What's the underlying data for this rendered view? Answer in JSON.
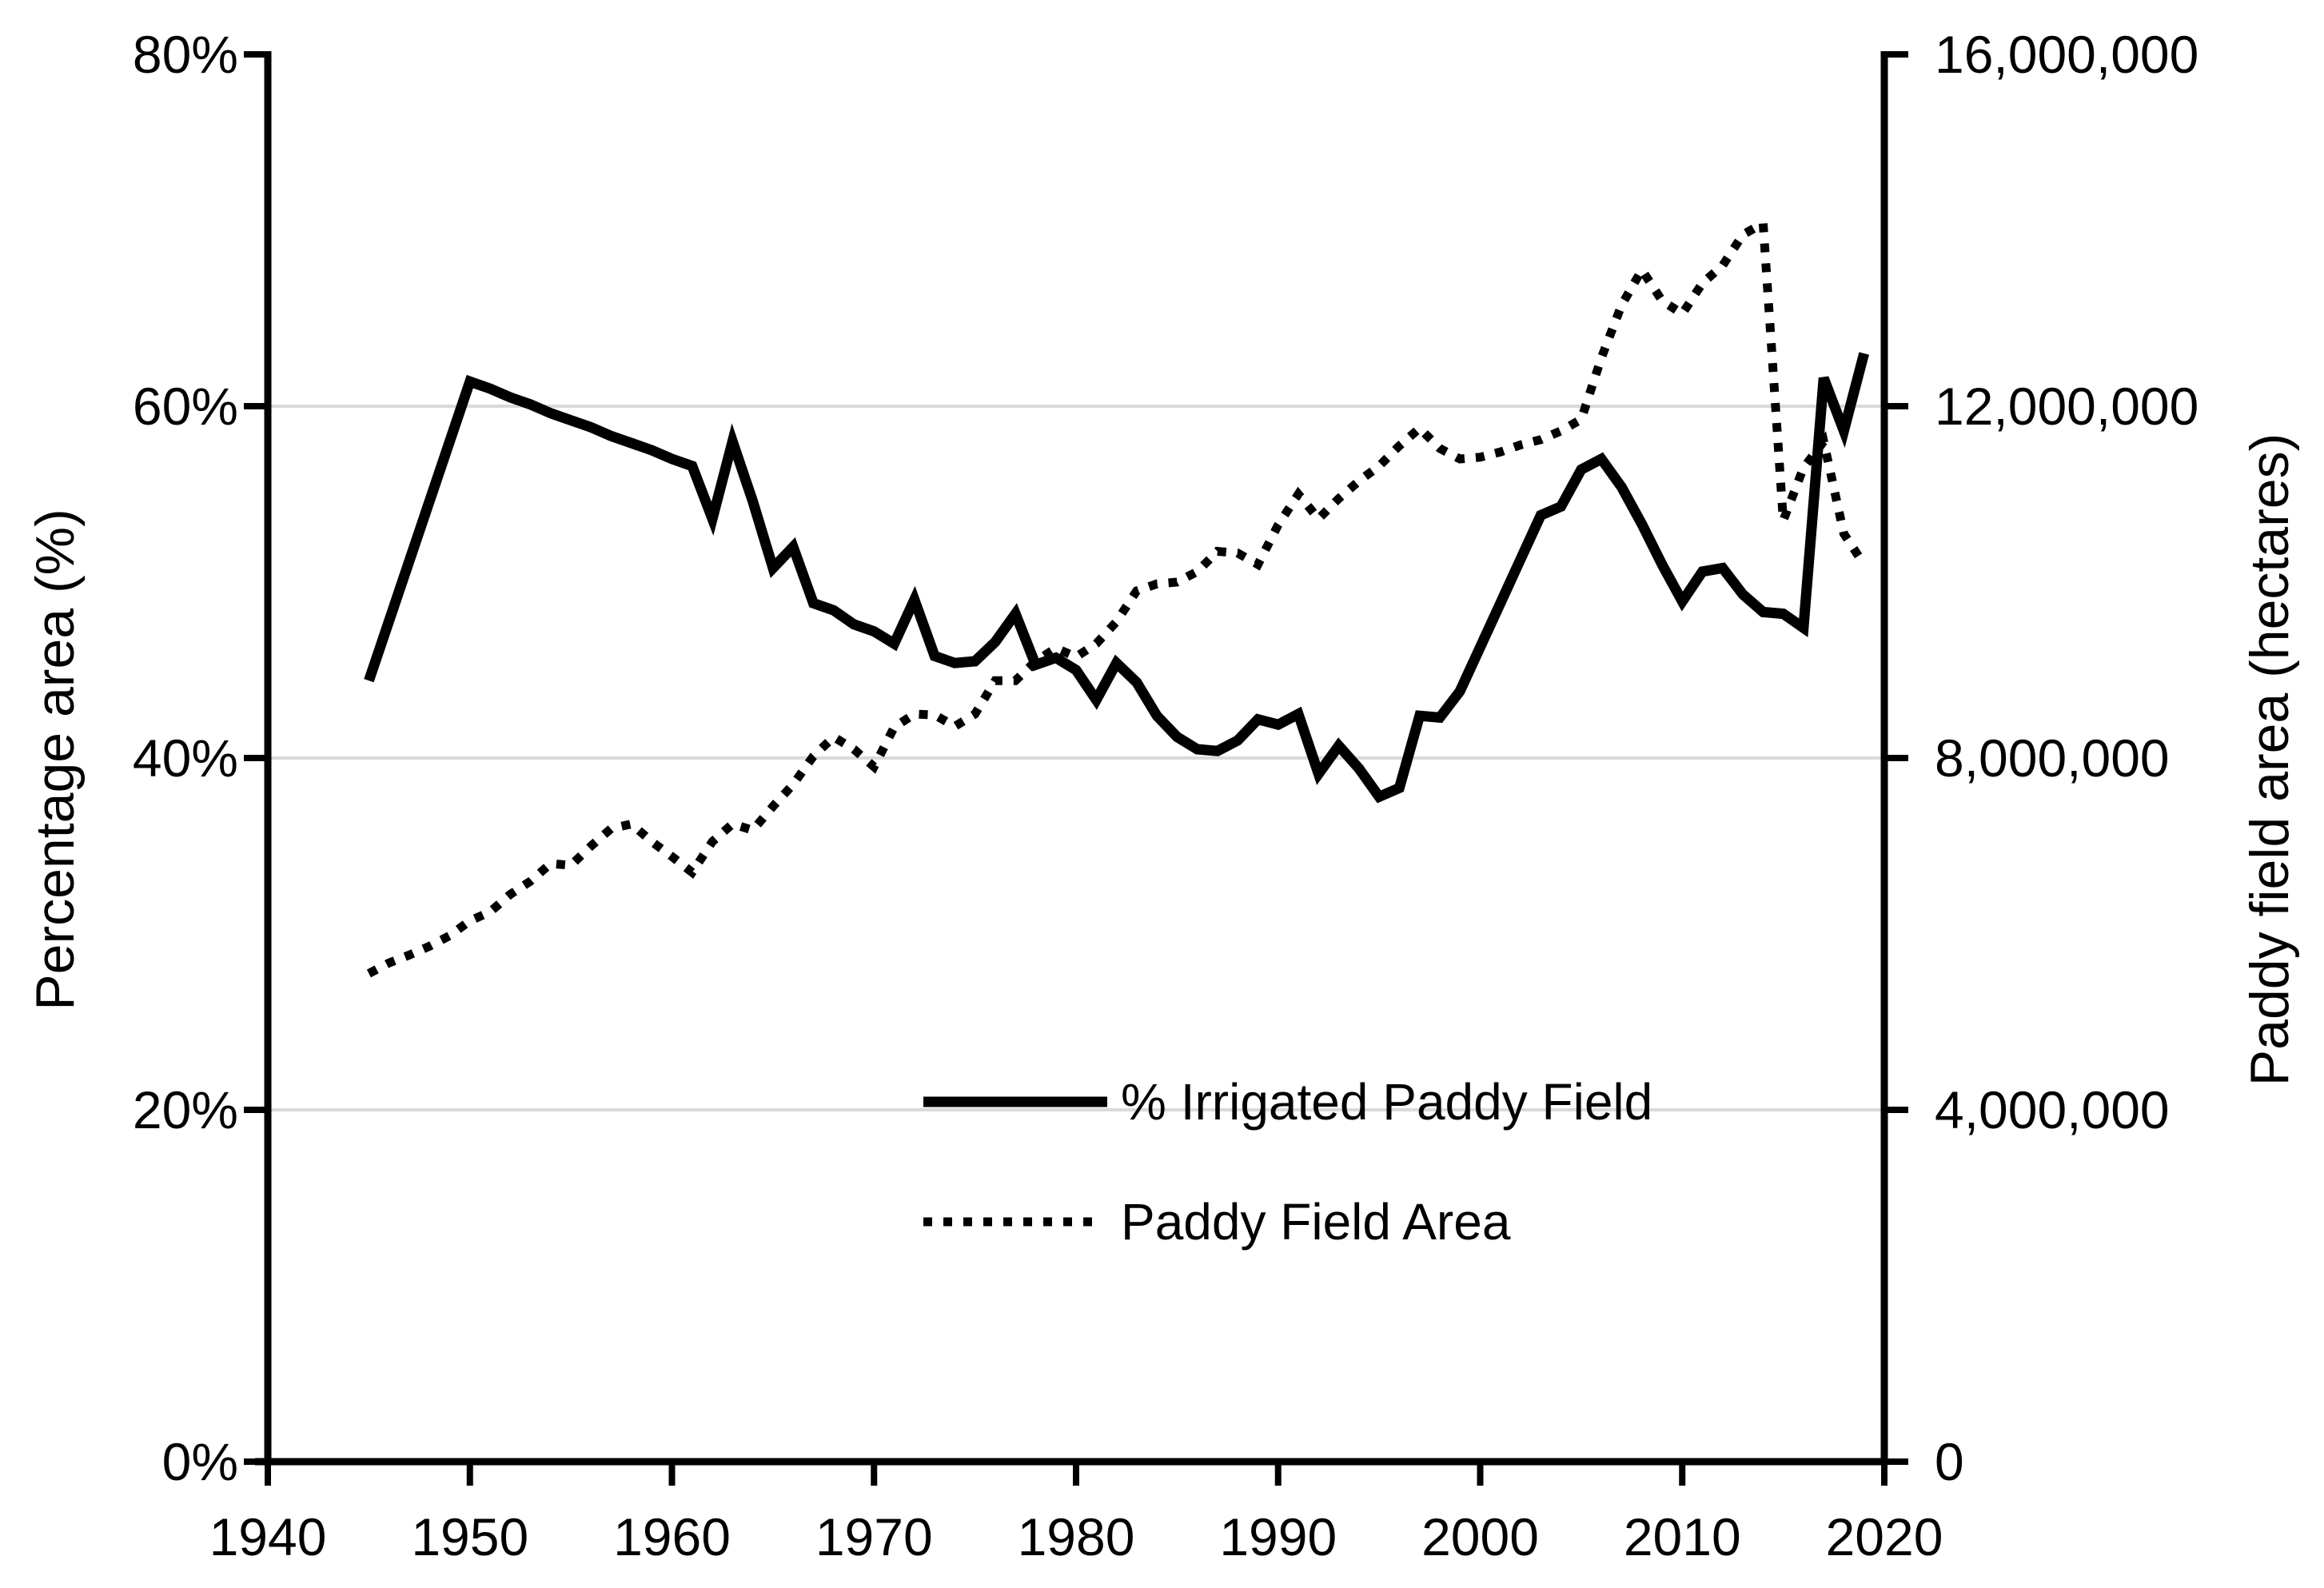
{
  "figure": {
    "background_color": "#ffffff",
    "line_color": "#000000",
    "gridline_color": "#d9d9d9"
  },
  "left_axis": {
    "title": "Percentage area (%)",
    "min": 0,
    "max": 80,
    "step": 20,
    "tick_values": [
      0,
      20,
      40,
      60,
      80
    ],
    "tick_labels": [
      "0%",
      "20%",
      "40%",
      "60%",
      "80%"
    ]
  },
  "right_axis": {
    "title": "Paddy field area (hectares)",
    "min": 0,
    "max": 16000000,
    "step": 4000000,
    "tick_values": [
      0,
      4000000,
      8000000,
      12000000,
      16000000
    ],
    "tick_labels": [
      "0",
      "4,000,000",
      "8,000,000",
      "12,000,000",
      "16,000,000"
    ]
  },
  "x_axis": {
    "min": 1940,
    "max": 2020,
    "step": 10,
    "tick_values": [
      1940,
      1950,
      1960,
      1970,
      1980,
      1990,
      2000,
      2010,
      2020
    ],
    "tick_labels": [
      "1940",
      "1950",
      "1960",
      "1970",
      "1980",
      "1990",
      "2000",
      "2010",
      "2020"
    ]
  },
  "legend": {
    "position": "inside-bottom-center",
    "items": [
      {
        "label": "% Irrigated Paddy Field",
        "style": "solid"
      },
      {
        "label": "Paddy Field Area",
        "style": "dotted"
      }
    ]
  },
  "chart_data": {
    "type": "line",
    "title": "",
    "xlabel": "",
    "ylabel": "Percentage area (%)",
    "y2label": "Paddy field area (hectares)",
    "x_range": [
      1940,
      2020
    ],
    "y_range_percent": [
      0,
      80
    ],
    "y2_range_hectares": [
      0,
      16000000
    ],
    "grid": "horizontal-only",
    "gridlines_percent": [
      20,
      40,
      60
    ],
    "series": [
      {
        "name": "% Irrigated Paddy Field",
        "axis": "left",
        "style": "solid",
        "unit": "%",
        "x": [
          1945,
          1950,
          1951,
          1952,
          1953,
          1954,
          1955,
          1956,
          1957,
          1958,
          1959,
          1960,
          1961,
          1962,
          1963,
          1964,
          1965,
          1966,
          1967,
          1968,
          1969,
          1970,
          1971,
          1972,
          1973,
          1974,
          1975,
          1976,
          1977,
          1978,
          1979,
          1980,
          1981,
          1982,
          1983,
          1984,
          1985,
          1986,
          1987,
          1988,
          1989,
          1990,
          1991,
          1992,
          1993,
          1994,
          1995,
          1996,
          1997,
          1998,
          1999,
          2000,
          2001,
          2002,
          2003,
          2004,
          2005,
          2006,
          2007,
          2008,
          2009,
          2010,
          2011,
          2012,
          2013,
          2014,
          2015,
          2016,
          2017,
          2018,
          2019
        ],
        "y": [
          44.4,
          61.4,
          61.0,
          60.5,
          60.1,
          59.6,
          59.2,
          58.8,
          58.3,
          57.9,
          57.5,
          57.0,
          56.6,
          53.6,
          58.0,
          54.6,
          50.8,
          52.0,
          48.8,
          48.4,
          47.6,
          47.2,
          46.5,
          49.0,
          45.8,
          45.4,
          45.5,
          46.6,
          48.2,
          45.3,
          45.7,
          45.0,
          43.3,
          45.4,
          44.3,
          42.4,
          41.2,
          40.5,
          40.4,
          41.0,
          42.2,
          41.9,
          42.5,
          39.1,
          40.7,
          39.4,
          37.8,
          38.3,
          42.4,
          42.3,
          43.8,
          46.3,
          48.8,
          51.3,
          53.8,
          54.3,
          56.4,
          57.0,
          55.4,
          53.3,
          51.0,
          48.9,
          50.6,
          50.8,
          49.3,
          48.3,
          48.2,
          47.4,
          61.6,
          58.6,
          63.0
        ]
      },
      {
        "name": "Paddy Field Area",
        "axis": "right",
        "style": "dotted",
        "unit": "hectares",
        "x": [
          1945,
          1946,
          1947,
          1948,
          1949,
          1950,
          1951,
          1952,
          1953,
          1954,
          1955,
          1956,
          1957,
          1958,
          1959,
          1960,
          1961,
          1962,
          1963,
          1964,
          1965,
          1966,
          1967,
          1968,
          1969,
          1970,
          1971,
          1972,
          1973,
          1974,
          1975,
          1976,
          1977,
          1978,
          1979,
          1980,
          1981,
          1982,
          1983,
          1984,
          1985,
          1986,
          1987,
          1988,
          1989,
          1990,
          1991,
          1992,
          1993,
          1994,
          1995,
          1996,
          1997,
          1998,
          1999,
          2000,
          2001,
          2002,
          2003,
          2004,
          2005,
          2006,
          2007,
          2008,
          2009,
          2010,
          2011,
          2012,
          2013,
          2014,
          2015,
          2016,
          2017,
          2018,
          2019
        ],
        "y": [
          5550000,
          5670000,
          5760000,
          5860000,
          5980000,
          6150000,
          6250000,
          6450000,
          6600000,
          6800000,
          6780000,
          7000000,
          7200000,
          7250000,
          7050000,
          6880000,
          6700000,
          7050000,
          7250000,
          7180000,
          7450000,
          7700000,
          8020000,
          8240000,
          8100000,
          7900000,
          8350000,
          8500000,
          8490000,
          8360000,
          8500000,
          8880000,
          8880000,
          9100000,
          9250000,
          9150000,
          9300000,
          9550000,
          9900000,
          9980000,
          10000000,
          10120000,
          10350000,
          10330000,
          10200000,
          10650000,
          11000000,
          10720000,
          10950000,
          11150000,
          11320000,
          11550000,
          11750000,
          11520000,
          11400000,
          11420000,
          11480000,
          11560000,
          11620000,
          11720000,
          11850000,
          12550000,
          13150000,
          13550000,
          13200000,
          13050000,
          13400000,
          13600000,
          13950000,
          14080000,
          10700000,
          11300000,
          11600000,
          10550000,
          10200000
        ]
      }
    ]
  }
}
